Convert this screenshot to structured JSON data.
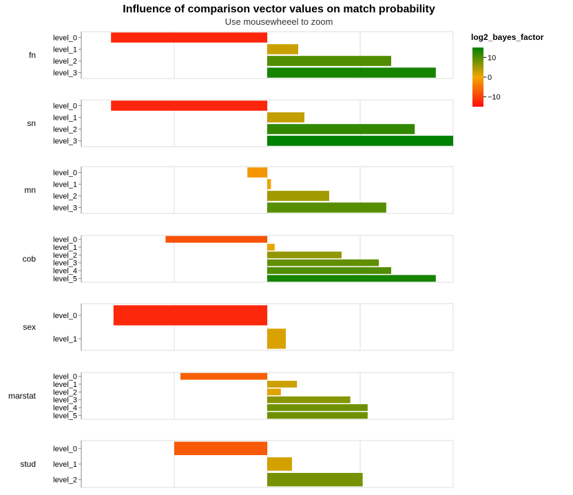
{
  "chart_data": {
    "type": "bar",
    "orientation": "horizontal",
    "title": "Influence of comparison vector values on match probability",
    "subtitle": "Use mousewheeel to zoom",
    "xlim": [
      -15,
      15
    ],
    "grid": true,
    "legend": {
      "title": "log2_bayes_factor",
      "placement": "top-right",
      "ticks": [
        10,
        0,
        -10
      ],
      "tick_labels": [
        "10",
        "0",
        "−10"
      ],
      "colors": {
        "low": "#ff0d0d",
        "mid": "#f2a600",
        "high": "#008000"
      }
    },
    "facets": [
      {
        "name": "fn",
        "levels": [
          "level_0",
          "level_1",
          "level_2",
          "level_3"
        ],
        "values": [
          -12.6,
          2.5,
          10.0,
          13.6
        ]
      },
      {
        "name": "sn",
        "levels": [
          "level_0",
          "level_1",
          "level_2",
          "level_3"
        ],
        "values": [
          -12.6,
          3.0,
          11.9,
          15.0
        ]
      },
      {
        "name": "mn",
        "levels": [
          "level_0",
          "level_1",
          "level_2",
          "level_3"
        ],
        "values": [
          -1.6,
          0.3,
          5.0,
          9.6
        ]
      },
      {
        "name": "cob",
        "levels": [
          "level_0",
          "level_1",
          "level_2",
          "level_3",
          "level_4",
          "level_5"
        ],
        "values": [
          -8.2,
          0.6,
          6.0,
          9.0,
          10.0,
          13.6
        ]
      },
      {
        "name": "sex",
        "levels": [
          "level_0",
          "level_1"
        ],
        "values": [
          -12.4,
          1.5
        ]
      },
      {
        "name": "marstat",
        "levels": [
          "level_0",
          "level_1",
          "level_2",
          "level_3",
          "level_4",
          "level_5"
        ],
        "values": [
          -7.0,
          2.4,
          1.1,
          6.7,
          8.1,
          8.1
        ]
      },
      {
        "name": "stud",
        "levels": [
          "level_0",
          "level_1",
          "level_2"
        ],
        "values": [
          -7.5,
          2.0,
          7.7
        ]
      }
    ]
  }
}
